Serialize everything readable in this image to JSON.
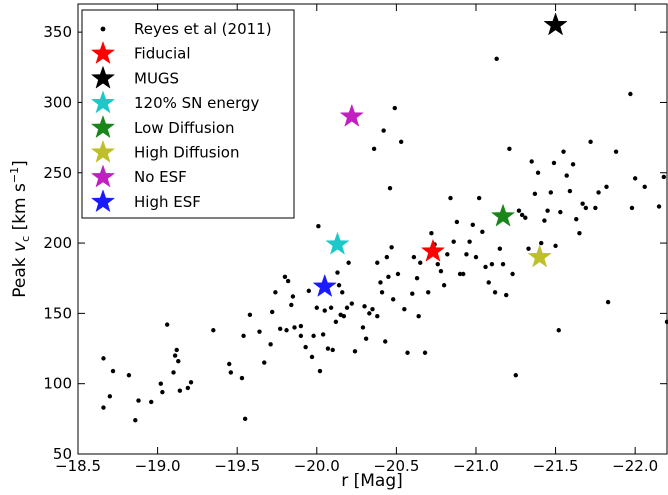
{
  "chart_data": {
    "type": "scatter",
    "xlabel": "r [Mag]",
    "ylabel_main": "Peak ",
    "ylabel_var": "v",
    "ylabel_sub": "c",
    "ylabel_unit": " [km s",
    "ylabel_exp": "−1",
    "ylabel_close": "]",
    "xlim": [
      -18.5,
      -22.2
    ],
    "ylim": [
      50,
      370
    ],
    "x_ticks": [
      -18.5,
      -19.0,
      -19.5,
      -20.0,
      -20.5,
      -21.0,
      -21.5,
      -22.0
    ],
    "x_tick_labels": [
      "−18.5",
      "−19.0",
      "−19.5",
      "−20.0",
      "−20.5",
      "−21.0",
      "−21.5",
      "−22.0"
    ],
    "y_ticks": [
      50,
      100,
      150,
      200,
      250,
      300,
      350
    ],
    "y_tick_labels": [
      "50",
      "100",
      "150",
      "200",
      "250",
      "300",
      "350"
    ],
    "grid": false,
    "legend_position": "top-left",
    "series": [
      {
        "name": "Reyes et al (2011)",
        "marker": "dot",
        "color": "#000000",
        "points": [
          [
            -18.66,
            83
          ],
          [
            -18.66,
            118
          ],
          [
            -18.7,
            91
          ],
          [
            -18.72,
            109
          ],
          [
            -18.82,
            106
          ],
          [
            -18.86,
            74
          ],
          [
            -18.88,
            88
          ],
          [
            -18.96,
            87
          ],
          [
            -19.02,
            100
          ],
          [
            -19.03,
            94
          ],
          [
            -19.06,
            142
          ],
          [
            -19.1,
            108
          ],
          [
            -19.11,
            120
          ],
          [
            -19.12,
            124
          ],
          [
            -19.13,
            116
          ],
          [
            -19.14,
            95
          ],
          [
            -19.19,
            97
          ],
          [
            -19.21,
            101
          ],
          [
            -19.35,
            138
          ],
          [
            -19.45,
            114
          ],
          [
            -19.46,
            108
          ],
          [
            -19.53,
            104
          ],
          [
            -19.54,
            134
          ],
          [
            -19.55,
            75
          ],
          [
            -19.58,
            149
          ],
          [
            -19.64,
            137
          ],
          [
            -19.67,
            115
          ],
          [
            -19.71,
            128
          ],
          [
            -19.72,
            151
          ],
          [
            -19.74,
            165
          ],
          [
            -19.77,
            139
          ],
          [
            -19.8,
            176
          ],
          [
            -19.81,
            138
          ],
          [
            -19.82,
            173
          ],
          [
            -19.84,
            156
          ],
          [
            -19.85,
            162
          ],
          [
            -19.86,
            140
          ],
          [
            -19.9,
            141
          ],
          [
            -19.9,
            134
          ],
          [
            -19.93,
            126
          ],
          [
            -19.95,
            166
          ],
          [
            -19.97,
            119
          ],
          [
            -19.98,
            134
          ],
          [
            -20.0,
            154
          ],
          [
            -20.01,
            212
          ],
          [
            -20.02,
            109
          ],
          [
            -20.04,
            135
          ],
          [
            -20.05,
            152
          ],
          [
            -20.07,
            125
          ],
          [
            -20.09,
            154
          ],
          [
            -20.1,
            124
          ],
          [
            -20.12,
            144
          ],
          [
            -20.13,
            179
          ],
          [
            -20.14,
            170
          ],
          [
            -20.15,
            149
          ],
          [
            -20.16,
            165
          ],
          [
            -20.17,
            148
          ],
          [
            -20.19,
            154
          ],
          [
            -20.2,
            186
          ],
          [
            -20.22,
            157
          ],
          [
            -20.24,
            123
          ],
          [
            -20.29,
            140
          ],
          [
            -20.3,
            155
          ],
          [
            -20.31,
            132
          ],
          [
            -20.33,
            150
          ],
          [
            -20.35,
            153
          ],
          [
            -20.36,
            267
          ],
          [
            -20.38,
            186
          ],
          [
            -20.38,
            148
          ],
          [
            -20.4,
            172
          ],
          [
            -20.41,
            165
          ],
          [
            -20.42,
            280
          ],
          [
            -20.43,
            130
          ],
          [
            -20.44,
            190
          ],
          [
            -20.45,
            176
          ],
          [
            -20.46,
            239
          ],
          [
            -20.47,
            197
          ],
          [
            -20.48,
            160
          ],
          [
            -20.49,
            296
          ],
          [
            -20.51,
            178
          ],
          [
            -20.53,
            272
          ],
          [
            -20.55,
            153
          ],
          [
            -20.57,
            122
          ],
          [
            -20.6,
            164
          ],
          [
            -20.61,
            190
          ],
          [
            -20.63,
            175
          ],
          [
            -20.64,
            148
          ],
          [
            -20.65,
            186
          ],
          [
            -20.68,
            122
          ],
          [
            -20.7,
            165
          ],
          [
            -20.72,
            207
          ],
          [
            -20.74,
            199
          ],
          [
            -20.76,
            185
          ],
          [
            -20.78,
            180
          ],
          [
            -20.8,
            170
          ],
          [
            -20.82,
            192
          ],
          [
            -20.84,
            232
          ],
          [
            -20.86,
            201
          ],
          [
            -20.88,
            215
          ],
          [
            -20.9,
            178
          ],
          [
            -20.92,
            178
          ],
          [
            -20.94,
            192
          ],
          [
            -20.96,
            201
          ],
          [
            -20.98,
            213
          ],
          [
            -21.0,
            190
          ],
          [
            -21.02,
            232
          ],
          [
            -21.04,
            208
          ],
          [
            -21.06,
            183
          ],
          [
            -21.08,
            172
          ],
          [
            -21.1,
            185
          ],
          [
            -21.12,
            165
          ],
          [
            -21.13,
            331
          ],
          [
            -21.15,
            196
          ],
          [
            -21.17,
            185
          ],
          [
            -21.19,
            163
          ],
          [
            -21.21,
            267
          ],
          [
            -21.23,
            178
          ],
          [
            -21.25,
            106
          ],
          [
            -21.27,
            223
          ],
          [
            -21.29,
            220
          ],
          [
            -21.31,
            218
          ],
          [
            -21.33,
            196
          ],
          [
            -21.35,
            258
          ],
          [
            -21.37,
            235
          ],
          [
            -21.39,
            250
          ],
          [
            -21.41,
            200
          ],
          [
            -21.43,
            216
          ],
          [
            -21.45,
            223
          ],
          [
            -21.47,
            236
          ],
          [
            -21.49,
            257
          ],
          [
            -21.5,
            198
          ],
          [
            -21.52,
            138
          ],
          [
            -21.53,
            222
          ],
          [
            -21.55,
            265
          ],
          [
            -21.57,
            248
          ],
          [
            -21.59,
            237
          ],
          [
            -21.61,
            256
          ],
          [
            -21.63,
            217
          ],
          [
            -21.65,
            207
          ],
          [
            -21.67,
            228
          ],
          [
            -21.69,
            225
          ],
          [
            -21.72,
            272
          ],
          [
            -21.75,
            225
          ],
          [
            -21.77,
            236
          ],
          [
            -21.82,
            240
          ],
          [
            -21.83,
            158
          ],
          [
            -21.88,
            265
          ],
          [
            -21.97,
            306
          ],
          [
            -21.98,
            225
          ],
          [
            -22.0,
            246
          ],
          [
            -22.06,
            240
          ],
          [
            -22.15,
            226
          ],
          [
            -22.18,
            247
          ],
          [
            -22.2,
            144
          ],
          [
            -22.24,
            215
          ]
        ]
      },
      {
        "name": "Fiducial",
        "marker": "star",
        "color": "#ff0000",
        "points": [
          [
            -20.73,
            194
          ]
        ]
      },
      {
        "name": "MUGS",
        "marker": "star",
        "color": "#000000",
        "points": [
          [
            -21.5,
            355
          ]
        ]
      },
      {
        "name": "120% SN energy",
        "marker": "star",
        "color": "#1fc8c8",
        "points": [
          [
            -20.13,
            199
          ]
        ]
      },
      {
        "name": "Low Diffusion",
        "marker": "star",
        "color": "#1a861a",
        "points": [
          [
            -21.17,
            219
          ]
        ]
      },
      {
        "name": "High Diffusion",
        "marker": "star",
        "color": "#bfbf2a",
        "points": [
          [
            -21.4,
            190
          ]
        ]
      },
      {
        "name": "No ESF",
        "marker": "star",
        "color": "#c020c0",
        "points": [
          [
            -20.22,
            290
          ]
        ]
      },
      {
        "name": "High ESF",
        "marker": "star",
        "color": "#1a1aff",
        "points": [
          [
            -20.05,
            169
          ]
        ]
      }
    ]
  }
}
